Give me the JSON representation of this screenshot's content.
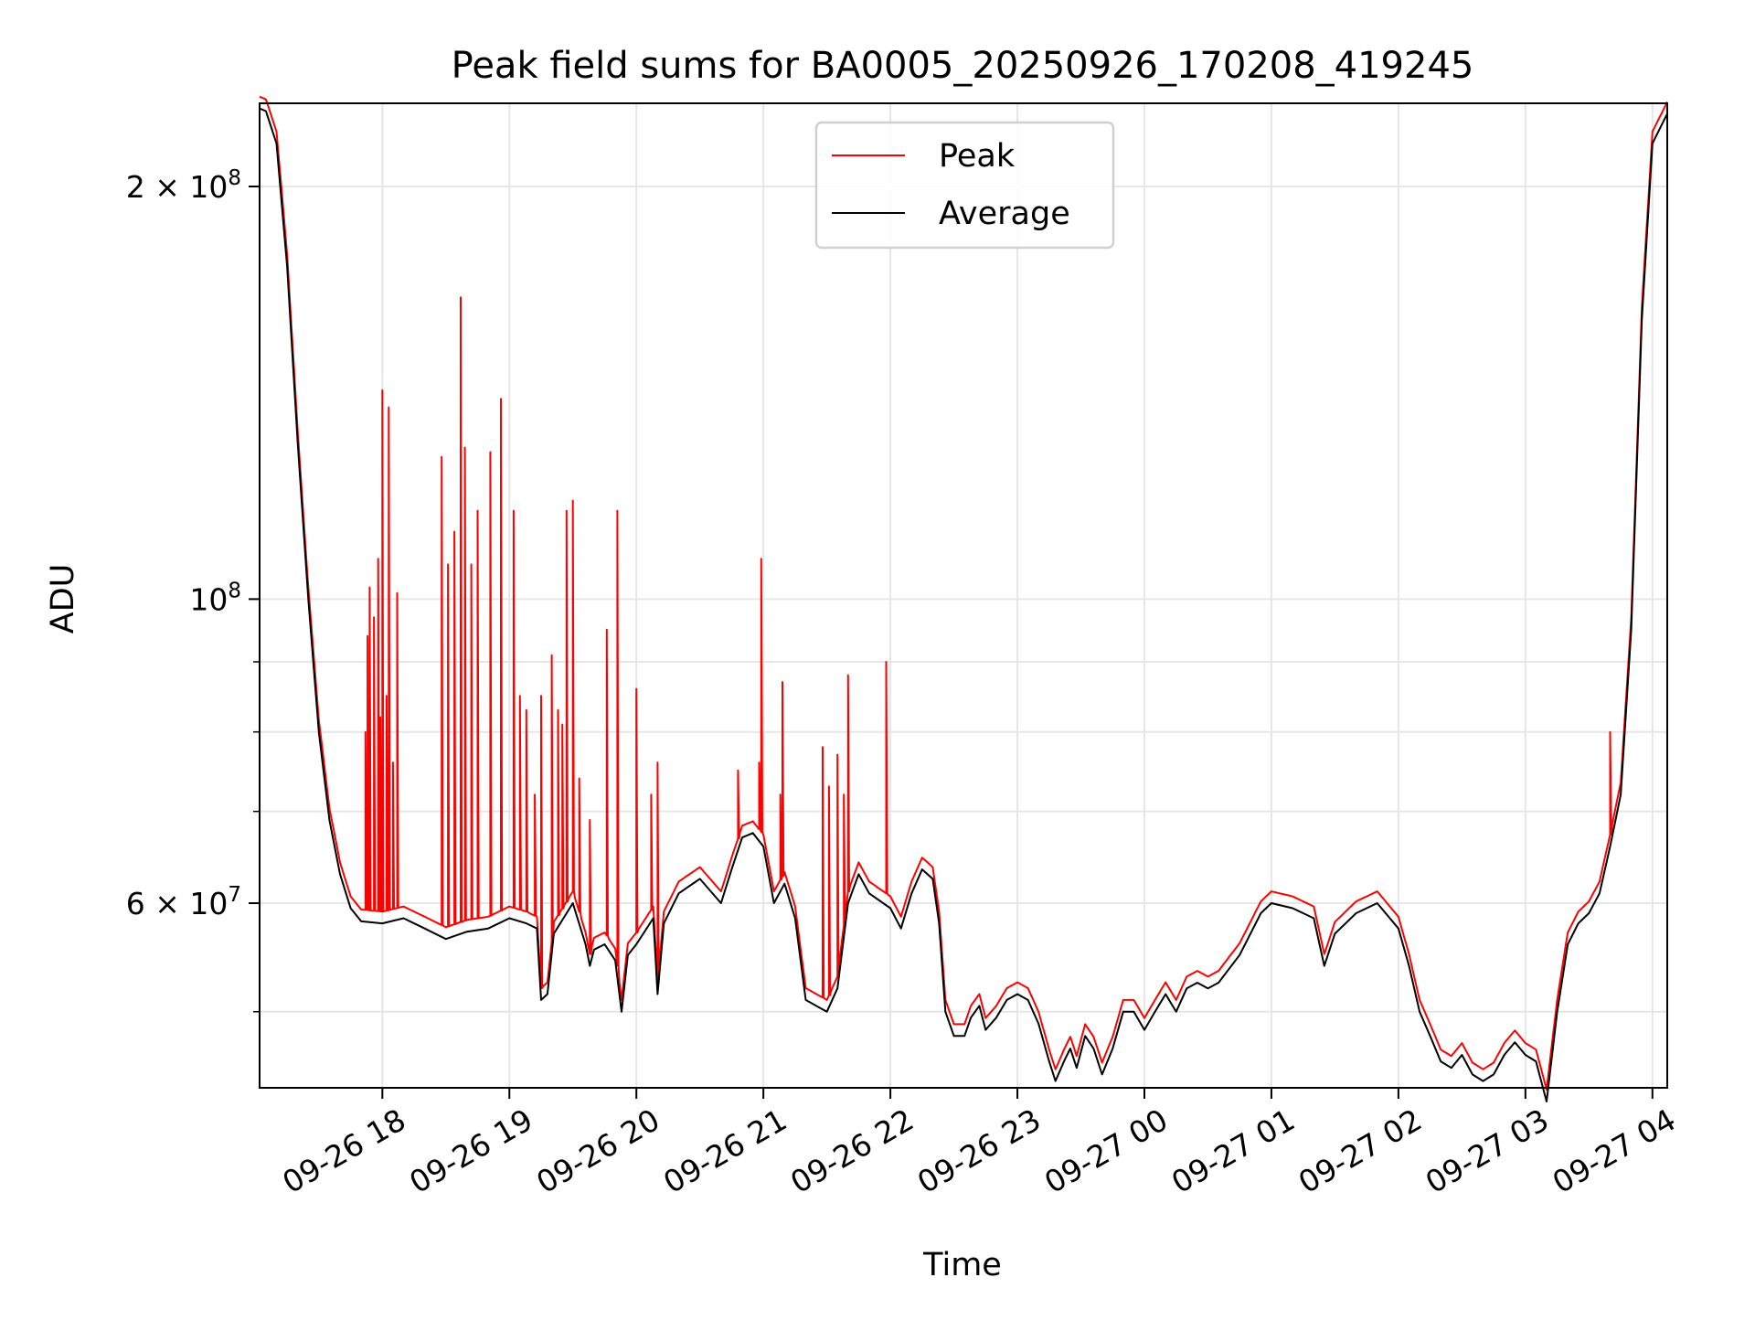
{
  "chart_data": {
    "type": "line",
    "title": "Peak field sums for BA0005_20250926_170208_419245",
    "xlabel": "Time",
    "ylabel": "ADU",
    "yscale": "log",
    "grid": true,
    "legend_position": "top-center",
    "x_ticks": [
      {
        "value": "2025-09-26T18:00",
        "label": "09-26 18"
      },
      {
        "value": "2025-09-26T19:00",
        "label": "09-26 19"
      },
      {
        "value": "2025-09-26T20:00",
        "label": "09-26 20"
      },
      {
        "value": "2025-09-26T21:00",
        "label": "09-26 21"
      },
      {
        "value": "2025-09-26T22:00",
        "label": "09-26 22"
      },
      {
        "value": "2025-09-26T23:00",
        "label": "09-26 23"
      },
      {
        "value": "2025-09-27T00:00",
        "label": "09-27 00"
      },
      {
        "value": "2025-09-27T01:00",
        "label": "09-27 01"
      },
      {
        "value": "2025-09-27T02:00",
        "label": "09-27 02"
      },
      {
        "value": "2025-09-27T03:00",
        "label": "09-27 03"
      },
      {
        "value": "2025-09-27T04:00",
        "label": "09-27 04"
      }
    ],
    "y_major_ticks": [
      {
        "value": 60000000,
        "label_base": "6 × 10",
        "label_exp": "7"
      },
      {
        "value": 100000000,
        "label_base": "10",
        "label_exp": "8"
      },
      {
        "value": 200000000,
        "label_base": "2 × 10",
        "label_exp": "8"
      }
    ],
    "y_minor_gridlines": [
      50000000,
      70000000,
      80000000,
      90000000
    ],
    "xlim": [
      "2025-09-26T17:02",
      "2025-09-27T04:07"
    ],
    "ylim": [
      44000000,
      230000000
    ],
    "series": [
      {
        "name": "Average",
        "color": "#000000",
        "points": [
          [
            "2025-09-26T17:02",
            228000000.0
          ],
          [
            "2025-09-26T17:05",
            227000000.0
          ],
          [
            "2025-09-26T17:10",
            215000000.0
          ],
          [
            "2025-09-26T17:15",
            175000000.0
          ],
          [
            "2025-09-26T17:20",
            130000000.0
          ],
          [
            "2025-09-26T17:25",
            100000000.0
          ],
          [
            "2025-09-26T17:30",
            80000000.0
          ],
          [
            "2025-09-26T17:35",
            69000000.0
          ],
          [
            "2025-09-26T17:40",
            63000000.0
          ],
          [
            "2025-09-26T17:45",
            59500000.0
          ],
          [
            "2025-09-26T17:50",
            58200000.0
          ],
          [
            "2025-09-26T18:00",
            58000000.0
          ],
          [
            "2025-09-26T18:10",
            58500000.0
          ],
          [
            "2025-09-26T18:20",
            57500000.0
          ],
          [
            "2025-09-26T18:30",
            56500000.0
          ],
          [
            "2025-09-26T18:40",
            57200000.0
          ],
          [
            "2025-09-26T18:50",
            57500000.0
          ],
          [
            "2025-09-26T19:00",
            58500000.0
          ],
          [
            "2025-09-26T19:08",
            58000000.0
          ],
          [
            "2025-09-26T19:13",
            57500000.0
          ],
          [
            "2025-09-26T19:15",
            51000000.0
          ],
          [
            "2025-09-26T19:18",
            51500000.0
          ],
          [
            "2025-09-26T19:21",
            57000000.0
          ],
          [
            "2025-09-26T19:30",
            60000000.0
          ],
          [
            "2025-09-26T19:36",
            56000000.0
          ],
          [
            "2025-09-26T19:38",
            54000000.0
          ],
          [
            "2025-09-26T19:40",
            55500000.0
          ],
          [
            "2025-09-26T19:45",
            56000000.0
          ],
          [
            "2025-09-26T19:50",
            54500000.0
          ],
          [
            "2025-09-26T19:53",
            50000000.0
          ],
          [
            "2025-09-26T19:56",
            55000000.0
          ],
          [
            "2025-09-26T20:00",
            56000000.0
          ],
          [
            "2025-09-26T20:08",
            58500000.0
          ],
          [
            "2025-09-26T20:10",
            51500000.0
          ],
          [
            "2025-09-26T20:13",
            58000000.0
          ],
          [
            "2025-09-26T20:20",
            61000000.0
          ],
          [
            "2025-09-26T20:30",
            62500000.0
          ],
          [
            "2025-09-26T20:40",
            60000000.0
          ],
          [
            "2025-09-26T20:45",
            63500000.0
          ],
          [
            "2025-09-26T20:50",
            67000000.0
          ],
          [
            "2025-09-26T20:55",
            67500000.0
          ],
          [
            "2025-09-26T21:00",
            66000000.0
          ],
          [
            "2025-09-26T21:05",
            60000000.0
          ],
          [
            "2025-09-26T21:10",
            62000000.0
          ],
          [
            "2025-09-26T21:15",
            58500000.0
          ],
          [
            "2025-09-26T21:20",
            51000000.0
          ],
          [
            "2025-09-26T21:30",
            50000000.0
          ],
          [
            "2025-09-26T21:35",
            52000000.0
          ],
          [
            "2025-09-26T21:40",
            60000000.0
          ],
          [
            "2025-09-26T21:45",
            63000000.0
          ],
          [
            "2025-09-26T21:50",
            61000000.0
          ],
          [
            "2025-09-26T22:00",
            59500000.0
          ],
          [
            "2025-09-26T22:05",
            57500000.0
          ],
          [
            "2025-09-26T22:10",
            61000000.0
          ],
          [
            "2025-09-26T22:15",
            63500000.0
          ],
          [
            "2025-09-26T22:20",
            62500000.0
          ],
          [
            "2025-09-26T22:23",
            58000000.0
          ],
          [
            "2025-09-26T22:26",
            50000000.0
          ],
          [
            "2025-09-26T22:30",
            48000000.0
          ],
          [
            "2025-09-26T22:35",
            48000000.0
          ],
          [
            "2025-09-26T22:38",
            49500000.0
          ],
          [
            "2025-09-26T22:42",
            50500000.0
          ],
          [
            "2025-09-26T22:45",
            48500000.0
          ],
          [
            "2025-09-26T22:50",
            49500000.0
          ],
          [
            "2025-09-26T22:55",
            51000000.0
          ],
          [
            "2025-09-26T23:00",
            51500000.0
          ],
          [
            "2025-09-26T23:05",
            51000000.0
          ],
          [
            "2025-09-26T23:10",
            49000000.0
          ],
          [
            "2025-09-26T23:15",
            46000000.0
          ],
          [
            "2025-09-26T23:18",
            44500000.0
          ],
          [
            "2025-09-26T23:22",
            46000000.0
          ],
          [
            "2025-09-26T23:25",
            47000000.0
          ],
          [
            "2025-09-26T23:28",
            45500000.0
          ],
          [
            "2025-09-26T23:32",
            48000000.0
          ],
          [
            "2025-09-26T23:36",
            47000000.0
          ],
          [
            "2025-09-26T23:40",
            45000000.0
          ],
          [
            "2025-09-26T23:45",
            47000000.0
          ],
          [
            "2025-09-26T23:50",
            50000000.0
          ],
          [
            "2025-09-26T23:55",
            50000000.0
          ],
          [
            "2025-09-27T00:00",
            48500000.0
          ],
          [
            "2025-09-27T00:05",
            50000000.0
          ],
          [
            "2025-09-27T00:10",
            51500000.0
          ],
          [
            "2025-09-27T00:15",
            50000000.0
          ],
          [
            "2025-09-27T00:20",
            52000000.0
          ],
          [
            "2025-09-27T00:25",
            52500000.0
          ],
          [
            "2025-09-27T00:30",
            52000000.0
          ],
          [
            "2025-09-27T00:35",
            52500000.0
          ],
          [
            "2025-09-27T00:45",
            55000000.0
          ],
          [
            "2025-09-27T00:55",
            59000000.0
          ],
          [
            "2025-09-27T01:00",
            60000000.0
          ],
          [
            "2025-09-27T01:10",
            59500000.0
          ],
          [
            "2025-09-27T01:20",
            58500000.0
          ],
          [
            "2025-09-27T01:25",
            54000000.0
          ],
          [
            "2025-09-27T01:30",
            57000000.0
          ],
          [
            "2025-09-27T01:40",
            59000000.0
          ],
          [
            "2025-09-27T01:50",
            60000000.0
          ],
          [
            "2025-09-27T02:00",
            57500000.0
          ],
          [
            "2025-09-27T02:05",
            54000000.0
          ],
          [
            "2025-09-27T02:10",
            50000000.0
          ],
          [
            "2025-09-27T02:15",
            48000000.0
          ],
          [
            "2025-09-27T02:20",
            46000000.0
          ],
          [
            "2025-09-27T02:25",
            45500000.0
          ],
          [
            "2025-09-27T02:30",
            46500000.0
          ],
          [
            "2025-09-27T02:35",
            45000000.0
          ],
          [
            "2025-09-27T02:40",
            44500000.0
          ],
          [
            "2025-09-27T02:45",
            45000000.0
          ],
          [
            "2025-09-27T02:50",
            46500000.0
          ],
          [
            "2025-09-27T02:55",
            47500000.0
          ],
          [
            "2025-09-27T03:00",
            46500000.0
          ],
          [
            "2025-09-27T03:05",
            46000000.0
          ],
          [
            "2025-09-27T03:10",
            43000000.0
          ],
          [
            "2025-09-27T03:15",
            50000000.0
          ],
          [
            "2025-09-27T03:20",
            56000000.0
          ],
          [
            "2025-09-27T03:25",
            58000000.0
          ],
          [
            "2025-09-27T03:30",
            59000000.0
          ],
          [
            "2025-09-27T03:35",
            61000000.0
          ],
          [
            "2025-09-27T03:40",
            66000000.0
          ],
          [
            "2025-09-27T03:45",
            72000000.0
          ],
          [
            "2025-09-27T03:50",
            95000000.0
          ],
          [
            "2025-09-27T03:55",
            160000000.0
          ],
          [
            "2025-09-27T04:00",
            215000000.0
          ],
          [
            "2025-09-27T04:07",
            226000000.0
          ]
        ]
      },
      {
        "name": "Peak",
        "color": "#ff0000",
        "offset_factor": 1.02,
        "spikes": [
          [
            "2025-09-26T17:52",
            80000000.0
          ],
          [
            "2025-09-26T17:53",
            94000000.0
          ],
          [
            "2025-09-26T17:54",
            102000000.0
          ],
          [
            "2025-09-26T17:56",
            97000000.0
          ],
          [
            "2025-09-26T17:58",
            107000000.0
          ],
          [
            "2025-09-26T17:59",
            82000000.0
          ],
          [
            "2025-09-26T18:00",
            142000000.0
          ],
          [
            "2025-09-26T18:02",
            85000000.0
          ],
          [
            "2025-09-26T18:03",
            138000000.0
          ],
          [
            "2025-09-26T18:05",
            76000000.0
          ],
          [
            "2025-09-26T18:07",
            101000000.0
          ],
          [
            "2025-09-26T18:28",
            127000000.0
          ],
          [
            "2025-09-26T18:31",
            106000000.0
          ],
          [
            "2025-09-26T18:34",
            112000000.0
          ],
          [
            "2025-09-26T18:37",
            166000000.0
          ],
          [
            "2025-09-26T18:39",
            129000000.0
          ],
          [
            "2025-09-26T18:42",
            106000000.0
          ],
          [
            "2025-09-26T18:45",
            116000000.0
          ],
          [
            "2025-09-26T18:51",
            128000000.0
          ],
          [
            "2025-09-26T18:56",
            140000000.0
          ],
          [
            "2025-09-26T19:02",
            116000000.0
          ],
          [
            "2025-09-26T19:05",
            85000000.0
          ],
          [
            "2025-09-26T19:08",
            83000000.0
          ],
          [
            "2025-09-26T19:12",
            72000000.0
          ],
          [
            "2025-09-26T19:15",
            85000000.0
          ],
          [
            "2025-09-26T19:20",
            91000000.0
          ],
          [
            "2025-09-26T19:23",
            83000000.0
          ],
          [
            "2025-09-26T19:25",
            81000000.0
          ],
          [
            "2025-09-26T19:27",
            116000000.0
          ],
          [
            "2025-09-26T19:30",
            118000000.0
          ],
          [
            "2025-09-26T19:33",
            74000000.0
          ],
          [
            "2025-09-26T19:38",
            69000000.0
          ],
          [
            "2025-09-26T19:46",
            95000000.0
          ],
          [
            "2025-09-26T19:51",
            116000000.0
          ],
          [
            "2025-09-26T20:00",
            86000000.0
          ],
          [
            "2025-09-26T20:07",
            72000000.0
          ],
          [
            "2025-09-26T20:10",
            76000000.0
          ],
          [
            "2025-09-26T20:48",
            75000000.0
          ],
          [
            "2025-09-26T20:58",
            76000000.0
          ],
          [
            "2025-09-26T20:59",
            107000000.0
          ],
          [
            "2025-09-26T21:08",
            72000000.0
          ],
          [
            "2025-09-26T21:09",
            87000000.0
          ],
          [
            "2025-09-26T21:28",
            78000000.0
          ],
          [
            "2025-09-26T21:31",
            73000000.0
          ],
          [
            "2025-09-26T21:35",
            77000000.0
          ],
          [
            "2025-09-26T21:38",
            72000000.0
          ],
          [
            "2025-09-26T21:40",
            88000000.0
          ],
          [
            "2025-09-26T21:58",
            90000000.0
          ],
          [
            "2025-09-27T03:40",
            80000000.0
          ]
        ]
      }
    ]
  }
}
